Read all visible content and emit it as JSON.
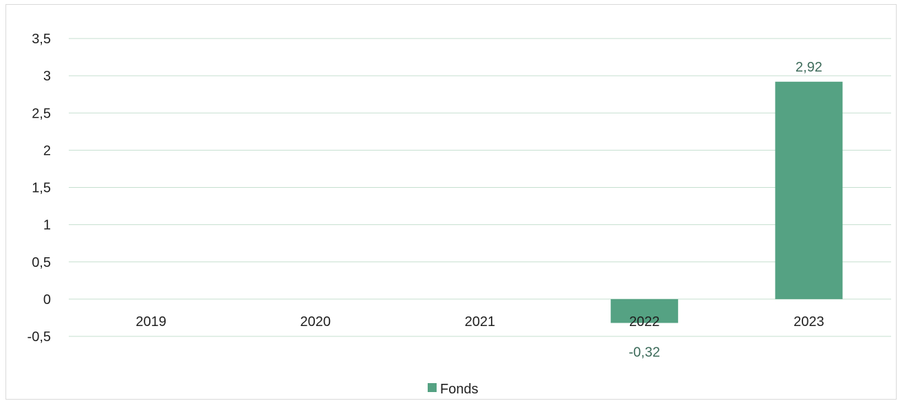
{
  "chart_data": {
    "type": "bar",
    "categories": [
      "2019",
      "2020",
      "2021",
      "2022",
      "2023"
    ],
    "series": [
      {
        "name": "Fonds",
        "values": [
          null,
          null,
          null,
          -0.32,
          2.92
        ],
        "color": "#55a283"
      }
    ],
    "data_labels": [
      "",
      "",
      "",
      "-0,32",
      "2,92"
    ],
    "y_ticks": [
      "-0,5",
      "0",
      "0,5",
      "1",
      "1,5",
      "2",
      "2,5",
      "3",
      "3,5"
    ],
    "ylim": [
      -0.5,
      3.5
    ],
    "grid": true,
    "gridline_color": "#c5dfcf",
    "legend": {
      "position": "bottom",
      "entries": [
        "Fonds"
      ]
    }
  }
}
